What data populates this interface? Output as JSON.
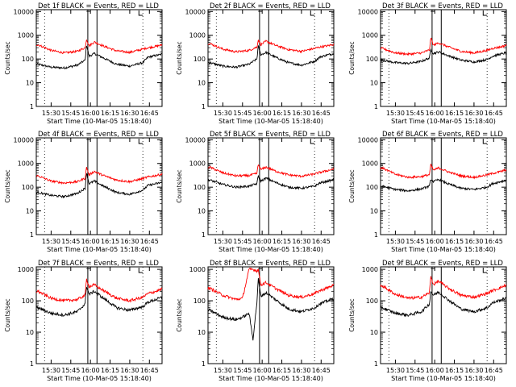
{
  "figure": {
    "ylabel": "Counts/sec",
    "xlabel": "Start Time (10-Mar-05 15:18:40)",
    "xticks": [
      "15:30",
      "15:45",
      "16:00",
      "16:15",
      "16:30",
      "16:45"
    ],
    "yticks": [
      "1",
      "10",
      "100",
      "1000",
      "10000"
    ],
    "line_colors": {
      "events": "#000000",
      "lld": "#ff0000"
    }
  },
  "chart_data": [
    {
      "type": "line",
      "title": "Det 1f BLACK = Events, RED = LLD",
      "xlabel": "Start Time (10-Mar-05 15:18:40)",
      "ylabel": "Counts/sec",
      "xlim_minutes_after_15_18_40": [
        0,
        96
      ],
      "ylim": [
        1,
        12000
      ],
      "y_scale": "log",
      "vertical_lines": [
        "15:58",
        "16:05"
      ],
      "dotted_lines": [
        "15:25",
        "16:40"
      ],
      "series": [
        {
          "name": "Events",
          "color": "#000000",
          "time": [
            "15:20",
            "15:30",
            "15:40",
            "15:50",
            "15:56",
            "15:57",
            "15:59",
            "16:03",
            "16:10",
            "16:20",
            "16:30",
            "16:40",
            "16:44",
            "16:50",
            "16:55"
          ],
          "values": [
            60,
            45,
            42,
            55,
            90,
            400,
            130,
            170,
            110,
            60,
            50,
            70,
            120,
            140,
            160
          ]
        },
        {
          "name": "LLD",
          "color": "#ff0000",
          "time": [
            "15:20",
            "15:30",
            "15:40",
            "15:50",
            "15:56",
            "15:57",
            "15:59",
            "16:03",
            "16:10",
            "16:20",
            "16:30",
            "16:40",
            "16:44",
            "16:50",
            "16:55"
          ],
          "values": [
            400,
            230,
            180,
            210,
            300,
            700,
            360,
            520,
            350,
            220,
            190,
            260,
            300,
            340,
            400
          ]
        }
      ]
    },
    {
      "type": "line",
      "title": "Det 2f BLACK = Events, RED = LLD",
      "xlabel": "Start Time (10-Mar-05 15:18:40)",
      "ylabel": "Counts/sec",
      "ylim": [
        1,
        12000
      ],
      "y_scale": "log",
      "vertical_lines": [
        "15:58",
        "16:05"
      ],
      "dotted_lines": [
        "15:25",
        "16:40"
      ],
      "series": [
        {
          "name": "Events",
          "color": "#000000",
          "time": [
            "15:20",
            "15:30",
            "15:40",
            "15:50",
            "15:56",
            "15:57",
            "15:59",
            "16:03",
            "16:10",
            "16:20",
            "16:30",
            "16:40",
            "16:44",
            "16:50",
            "16:55"
          ],
          "values": [
            70,
            50,
            45,
            60,
            100,
            350,
            150,
            190,
            120,
            70,
            55,
            80,
            120,
            150,
            170
          ]
        },
        {
          "name": "LLD",
          "color": "#ff0000",
          "time": [
            "15:20",
            "15:30",
            "15:40",
            "15:50",
            "15:56",
            "15:57",
            "15:59",
            "16:03",
            "16:10",
            "16:20",
            "16:30",
            "16:40",
            "16:44",
            "16:50",
            "16:55"
          ],
          "values": [
            450,
            260,
            200,
            230,
            320,
            650,
            400,
            560,
            380,
            250,
            210,
            280,
            320,
            360,
            420
          ]
        }
      ]
    },
    {
      "type": "line",
      "title": "Det 3f BLACK = Events, RED = LLD",
      "xlabel": "Start Time (10-Mar-05 15:18:40)",
      "ylabel": "Counts/sec",
      "ylim": [
        1,
        12000
      ],
      "y_scale": "log",
      "vertical_lines": [
        "15:58",
        "16:05"
      ],
      "dotted_lines": [
        "15:25",
        "16:40"
      ],
      "series": [
        {
          "name": "Events",
          "color": "#000000",
          "time": [
            "15:20",
            "15:30",
            "15:40",
            "15:50",
            "15:56",
            "15:57",
            "15:59",
            "16:03",
            "16:10",
            "16:20",
            "16:30",
            "16:40",
            "16:44",
            "16:50",
            "16:55"
          ],
          "values": [
            90,
            70,
            65,
            80,
            110,
            250,
            170,
            200,
            140,
            90,
            75,
            95,
            130,
            160,
            180
          ]
        },
        {
          "name": "LLD",
          "color": "#ff0000",
          "time": [
            "15:20",
            "15:30",
            "15:40",
            "15:50",
            "15:56",
            "15:57",
            "15:59",
            "16:03",
            "16:10",
            "16:20",
            "16:30",
            "16:40",
            "16:44",
            "16:50",
            "16:55"
          ],
          "values": [
            280,
            180,
            160,
            180,
            240,
            800,
            380,
            480,
            330,
            210,
            180,
            230,
            280,
            320,
            380
          ]
        }
      ]
    },
    {
      "type": "line",
      "title": "Det 4f BLACK = Events, RED = LLD",
      "xlabel": "Start Time (10-Mar-05 15:18:40)",
      "ylabel": "Counts/sec",
      "ylim": [
        1,
        12000
      ],
      "y_scale": "log",
      "vertical_lines": [
        "15:58",
        "16:05"
      ],
      "dotted_lines": [
        "15:25",
        "16:40"
      ],
      "series": [
        {
          "name": "Events",
          "color": "#000000",
          "time": [
            "15:20",
            "15:30",
            "15:40",
            "15:50",
            "15:56",
            "15:57",
            "15:59",
            "16:03",
            "16:10",
            "16:20",
            "16:30",
            "16:40",
            "16:44",
            "16:50",
            "16:55"
          ],
          "values": [
            60,
            45,
            40,
            55,
            90,
            420,
            140,
            180,
            110,
            60,
            50,
            75,
            120,
            140,
            160
          ]
        },
        {
          "name": "LLD",
          "color": "#ff0000",
          "time": [
            "15:20",
            "15:30",
            "15:40",
            "15:50",
            "15:56",
            "15:57",
            "15:59",
            "16:03",
            "16:10",
            "16:20",
            "16:30",
            "16:40",
            "16:44",
            "16:50",
            "16:55"
          ],
          "values": [
            300,
            180,
            150,
            170,
            240,
            700,
            330,
            460,
            310,
            200,
            170,
            230,
            270,
            310,
            360
          ]
        }
      ]
    },
    {
      "type": "line",
      "title": "Det 5f BLACK = Events, RED = LLD",
      "xlabel": "Start Time (10-Mar-05 15:18:40)",
      "ylabel": "Counts/sec",
      "ylim": [
        1,
        12000
      ],
      "y_scale": "log",
      "vertical_lines": [
        "15:58",
        "16:05"
      ],
      "dotted_lines": [
        "15:25",
        "16:40"
      ],
      "series": [
        {
          "name": "Events",
          "color": "#000000",
          "time": [
            "15:20",
            "15:30",
            "15:40",
            "15:50",
            "15:56",
            "15:57",
            "15:59",
            "16:03",
            "16:10",
            "16:20",
            "16:30",
            "16:40",
            "16:44",
            "16:50",
            "16:55"
          ],
          "values": [
            200,
            130,
            100,
            110,
            140,
            300,
            180,
            240,
            160,
            100,
            90,
            110,
            150,
            180,
            210
          ]
        },
        {
          "name": "LLD",
          "color": "#ff0000",
          "time": [
            "15:20",
            "15:30",
            "15:40",
            "15:50",
            "15:56",
            "15:57",
            "15:59",
            "16:03",
            "16:10",
            "16:20",
            "16:30",
            "16:40",
            "16:44",
            "16:50",
            "16:55"
          ],
          "values": [
            700,
            400,
            300,
            310,
            380,
            900,
            550,
            700,
            480,
            330,
            290,
            360,
            420,
            500,
            600
          ]
        }
      ]
    },
    {
      "type": "line",
      "title": "Det 6f BLACK = Events, RED = LLD",
      "xlabel": "Start Time (10-Mar-05 15:18:40)",
      "ylabel": "Counts/sec",
      "ylim": [
        1,
        12000
      ],
      "y_scale": "log",
      "vertical_lines": [
        "15:58",
        "16:05"
      ],
      "dotted_lines": [
        "15:25",
        "16:40"
      ],
      "series": [
        {
          "name": "Events",
          "color": "#000000",
          "time": [
            "15:20",
            "15:30",
            "15:40",
            "15:50",
            "15:56",
            "15:57",
            "15:59",
            "16:03",
            "16:10",
            "16:20",
            "16:30",
            "16:40",
            "16:44",
            "16:50",
            "16:55"
          ],
          "values": [
            110,
            80,
            70,
            85,
            110,
            220,
            170,
            210,
            140,
            90,
            80,
            100,
            140,
            170,
            200
          ]
        },
        {
          "name": "LLD",
          "color": "#ff0000",
          "time": [
            "15:20",
            "15:30",
            "15:40",
            "15:50",
            "15:56",
            "15:57",
            "15:59",
            "16:03",
            "16:10",
            "16:20",
            "16:30",
            "16:40",
            "16:44",
            "16:50",
            "16:55"
          ],
          "values": [
            650,
            350,
            260,
            280,
            340,
            900,
            520,
            650,
            450,
            300,
            260,
            330,
            380,
            450,
            550
          ]
        }
      ]
    },
    {
      "type": "line",
      "title": "Det 7f BLACK = Events, RED = LLD",
      "xlabel": "Start Time (10-Mar-05 15:18:40)",
      "ylabel": "Counts/sec",
      "ylim": [
        1,
        1200
      ],
      "y_scale": "log",
      "vertical_lines": [
        "15:58",
        "16:05"
      ],
      "dotted_lines": [
        "15:25",
        "16:40"
      ],
      "series": [
        {
          "name": "Events",
          "color": "#000000",
          "time": [
            "15:20",
            "15:30",
            "15:40",
            "15:50",
            "15:56",
            "15:57",
            "15:59",
            "16:03",
            "16:10",
            "16:20",
            "16:30",
            "16:40",
            "16:44",
            "16:50",
            "16:55"
          ],
          "values": [
            60,
            40,
            35,
            45,
            80,
            300,
            160,
            200,
            120,
            60,
            50,
            65,
            90,
            110,
            130
          ]
        },
        {
          "name": "LLD",
          "color": "#ff0000",
          "time": [
            "15:20",
            "15:30",
            "15:40",
            "15:50",
            "15:56",
            "15:57",
            "15:59",
            "16:03",
            "16:10",
            "16:20",
            "16:30",
            "16:40",
            "16:44",
            "16:50",
            "16:55"
          ],
          "values": [
            200,
            120,
            100,
            110,
            150,
            500,
            280,
            320,
            210,
            120,
            100,
            130,
            170,
            200,
            240
          ]
        }
      ]
    },
    {
      "type": "line",
      "title": "Det 8f BLACK = Events, RED = LLD",
      "xlabel": "Start Time (10-Mar-05 15:18:40)",
      "ylabel": "Counts/sec",
      "ylim": [
        1,
        1200
      ],
      "y_scale": "log",
      "vertical_lines": [
        "15:58",
        "16:05"
      ],
      "dotted_lines": [
        "15:25",
        "16:40"
      ],
      "series": [
        {
          "name": "Events",
          "color": "#000000",
          "time": [
            "15:20",
            "15:30",
            "15:40",
            "15:45",
            "15:50",
            "15:53",
            "15:56",
            "15:57",
            "15:59",
            "16:03",
            "16:10",
            "16:20",
            "16:30",
            "16:40",
            "16:44",
            "16:50",
            "16:55"
          ],
          "values": [
            50,
            30,
            25,
            30,
            40,
            6,
            90,
            500,
            140,
            180,
            110,
            55,
            45,
            60,
            80,
            100,
            120
          ]
        },
        {
          "name": "LLD",
          "color": "#ff0000",
          "time": [
            "15:20",
            "15:30",
            "15:40",
            "15:45",
            "15:50",
            "15:53",
            "15:56",
            "15:57",
            "15:59",
            "16:03",
            "16:10",
            "16:20",
            "16:30",
            "16:40",
            "16:44",
            "16:50",
            "16:55"
          ],
          "values": [
            250,
            150,
            110,
            120,
            1000,
            1000,
            900,
            1000,
            320,
            380,
            250,
            150,
            130,
            170,
            210,
            260,
            320
          ]
        }
      ]
    },
    {
      "type": "line",
      "title": "Det 9f BLACK = Events, RED = LLD",
      "xlabel": "Start Time (10-Mar-05 15:18:40)",
      "ylabel": "Counts/sec",
      "ylim": [
        1,
        1200
      ],
      "y_scale": "log",
      "vertical_lines": [
        "15:58",
        "16:05"
      ],
      "dotted_lines": [
        "15:25",
        "16:40"
      ],
      "series": [
        {
          "name": "Events",
          "color": "#000000",
          "time": [
            "15:20",
            "15:30",
            "15:40",
            "15:50",
            "15:56",
            "15:57",
            "15:59",
            "16:03",
            "16:10",
            "16:20",
            "16:30",
            "16:40",
            "16:44",
            "16:50",
            "16:55"
          ],
          "values": [
            60,
            40,
            35,
            45,
            80,
            200,
            150,
            190,
            110,
            55,
            45,
            60,
            85,
            105,
            125
          ]
        },
        {
          "name": "LLD",
          "color": "#ff0000",
          "time": [
            "15:20",
            "15:30",
            "15:40",
            "15:50",
            "15:56",
            "15:57",
            "15:59",
            "16:03",
            "16:10",
            "16:20",
            "16:30",
            "16:40",
            "16:44",
            "16:50",
            "16:55"
          ],
          "values": [
            300,
            160,
            120,
            130,
            180,
            600,
            330,
            420,
            260,
            150,
            130,
            170,
            210,
            260,
            320
          ]
        }
      ]
    }
  ]
}
